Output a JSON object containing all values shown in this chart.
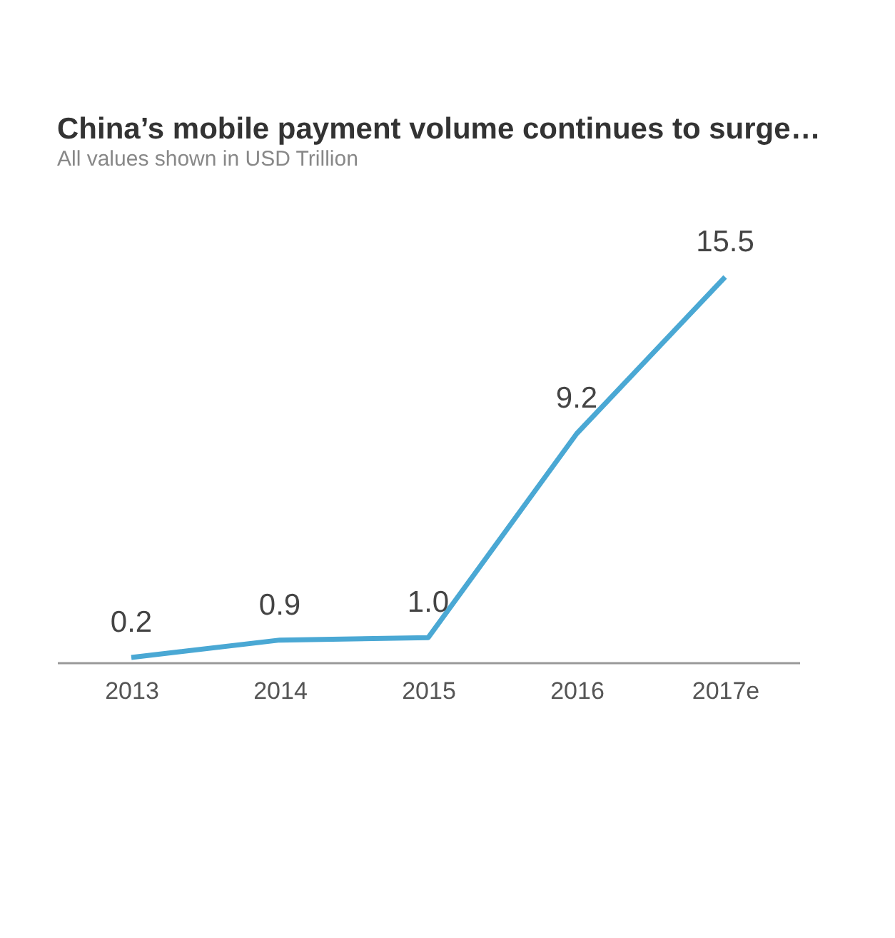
{
  "chart_data": {
    "type": "line",
    "title": "China’s mobile payment volume continues to surge…",
    "subtitle": "All values shown in USD Trillion",
    "categories": [
      "2013",
      "2014",
      "2015",
      "2016",
      "2017e"
    ],
    "series": [
      {
        "color": "#4aa8d4",
        "values": [
          0.2,
          0.9,
          1.0,
          9.2,
          15.5
        ],
        "value_labels": [
          "0.2",
          "0.9",
          "1.0",
          "9.2",
          "15.5"
        ]
      }
    ],
    "grid": false,
    "marker": "none",
    "line_style": "solid",
    "tick_labels": "x"
  }
}
